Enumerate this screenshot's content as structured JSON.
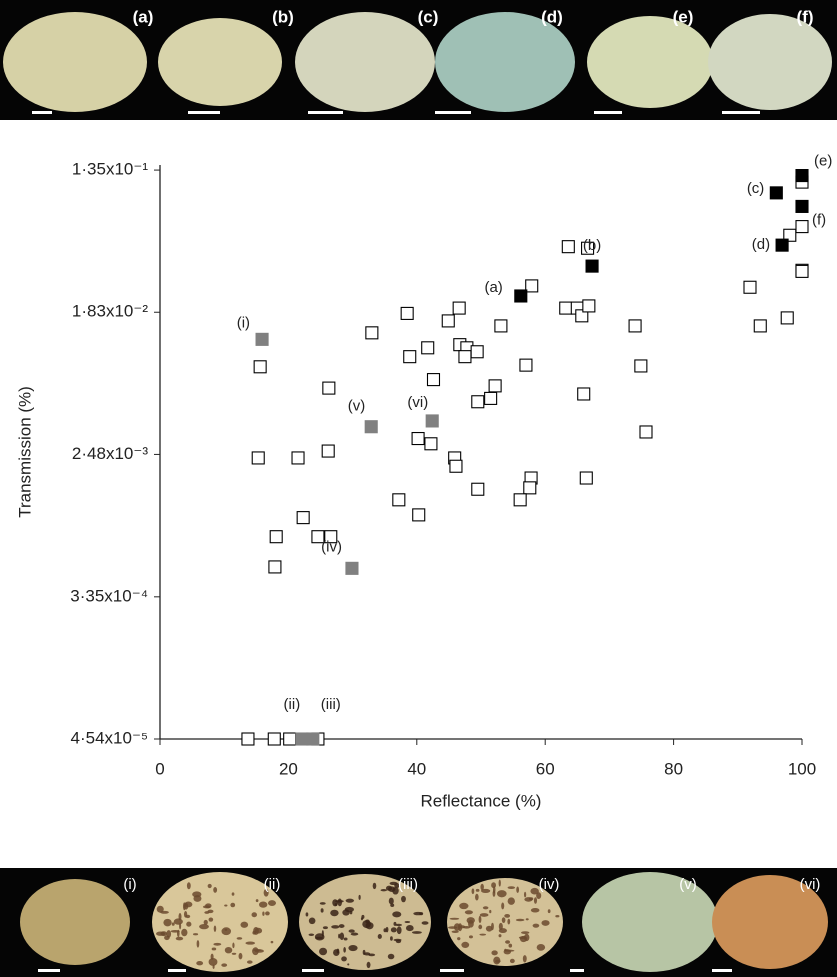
{
  "chart_data": {
    "type": "scatter",
    "xlabel": "Reflectance (%)",
    "ylabel": "Transmission (%)",
    "xlim": [
      0,
      100
    ],
    "xticks": [
      0,
      20,
      40,
      60,
      80,
      100
    ],
    "ylim": [
      4.54e-05,
      0.145
    ],
    "yscale": "log",
    "yticks": [
      {
        "value": 4.54e-05,
        "label": "4·54x10⁻⁵"
      },
      {
        "value": 0.000335,
        "label": "3·35x10⁻⁴"
      },
      {
        "value": 0.00248,
        "label": "2·48x10⁻³"
      },
      {
        "value": 0.0183,
        "label": "1·83x10⁻²"
      },
      {
        "value": 0.135,
        "label": "1·35x10⁻¹"
      }
    ],
    "series": [
      {
        "color": "#ffffff",
        "x": [
          13.7,
          17.8,
          20.2,
          24.6,
          15.6,
          15.3,
          21.5,
          18.1,
          17.9,
          22.3,
          24.6,
          26.6,
          26.2,
          26.3,
          33.0,
          38.5,
          38.9,
          41.7,
          42.6,
          40.2,
          42.2,
          44.9,
          46.6,
          46.7,
          47.8,
          47.5,
          49.4,
          49.5,
          51.5,
          52.2,
          45.9,
          46.1,
          49.5,
          37.2,
          40.3,
          53.1,
          57.0,
          57.8,
          57.6,
          56.1,
          57.9,
          63.2,
          63.6,
          65.0,
          65.7,
          66.6,
          66.8,
          66.0,
          66.4,
          74.0,
          74.9,
          75.7,
          91.9,
          93.5,
          97.7,
          98.1,
          100,
          100,
          100,
          100
        ],
        "values": [
          4.54e-05,
          4.54e-05,
          4.54e-05,
          4.54e-05,
          0.0085,
          0.00236,
          0.00236,
          0.00078,
          0.00051,
          0.00102,
          0.00078,
          0.00078,
          0.0026,
          0.0063,
          0.0137,
          0.018,
          0.0098,
          0.0111,
          0.0071,
          0.0031,
          0.00288,
          0.0162,
          0.0194,
          0.0116,
          0.0111,
          0.0098,
          0.0105,
          0.0052,
          0.00545,
          0.0065,
          0.00236,
          0.0021,
          0.00152,
          0.00131,
          0.00106,
          0.0151,
          0.0087,
          0.00178,
          0.00155,
          0.00131,
          0.0265,
          0.0194,
          0.046,
          0.0194,
          0.0174,
          0.045,
          0.02,
          0.0058,
          0.00178,
          0.0151,
          0.0086,
          0.0034,
          0.026,
          0.0151,
          0.0169,
          0.054,
          0.061,
          0.033,
          0.0325,
          0.114
        ]
      },
      {
        "color": "#000000",
        "labels": [
          "(a)",
          "(b)",
          "(c)",
          "(d)",
          "(e)",
          "(f)"
        ],
        "x": [
          56.2,
          67.3,
          96.0,
          96.9,
          100,
          100
        ],
        "values": [
          0.023,
          0.035,
          0.098,
          0.047,
          0.125,
          0.081
        ]
      },
      {
        "color": "#808080",
        "labels": [
          "(i)",
          "(ii)",
          "(iii)",
          "(iv)",
          "(v)",
          "(vi)"
        ],
        "x": [
          15.9,
          22.1,
          23.8,
          29.9,
          32.9,
          42.4
        ],
        "values": [
          0.0125,
          4.54e-05,
          4.54e-05,
          0.0005,
          0.00366,
          0.00397
        ]
      }
    ]
  }
}
